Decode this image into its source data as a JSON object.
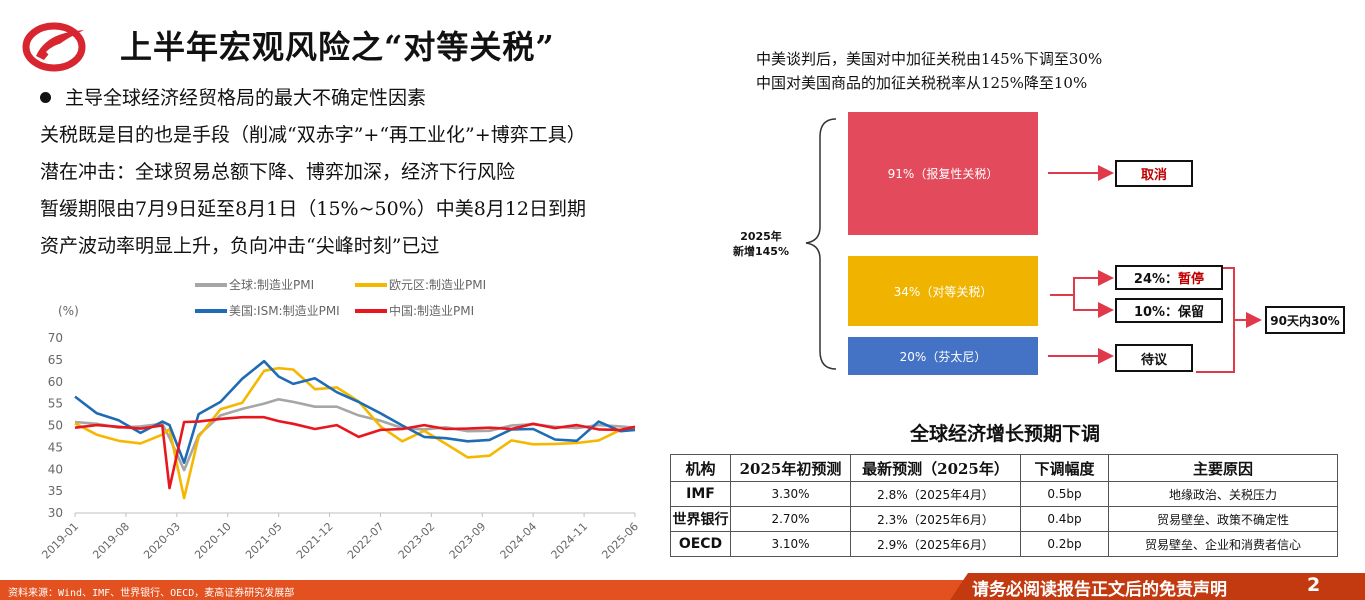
{
  "title": "上半年宏观风险之“对等关税”",
  "bullet_heading": "主导全球经济经贸格局的最大不确定性因素",
  "lines": [
    "关税既是目的也是手段（削减“双赤字”+“再工业化”+博弈工具）",
    "潜在冲击：全球贸易总额下降、博弈加深，经济下行风险",
    "暂缓期限由7月9日延至8月1日（15%~50%）中美8月12日到期",
    "资产波动率明显上升，负向冲击“尖峰时刻”已过"
  ],
  "notes": [
    "中美谈判后，美国对中加征关税由145%下调至30%",
    "中国对美国商品的加征关税税率从125%降至10%"
  ],
  "tariff_diagram": {
    "brace_label_1": "2025年",
    "brace_label_2": "新增145%",
    "segments": [
      {
        "label": "91%（报复性关税）",
        "color": "#e34a5b"
      },
      {
        "label": "34%（对等关税）",
        "color": "#f0b400"
      },
      {
        "label": "20%（芬太尼）",
        "color": "#4472c4"
      }
    ],
    "outcomes": {
      "cancel": "取消",
      "pause_pct": "24%：",
      "pause_word": "暂停",
      "keep": "10%：保留",
      "pending": "待议",
      "ninety_days": "90天内30%"
    },
    "arrow_color": "#e03a4a"
  },
  "chart_data": {
    "type": "line",
    "ylabel": "(%)",
    "ylim": [
      30,
      70
    ],
    "yticks": [
      30,
      35,
      40,
      45,
      50,
      55,
      60,
      65,
      70
    ],
    "xticks": [
      "2019-01",
      "2019-08",
      "2020-03",
      "2020-10",
      "2021-05",
      "2021-12",
      "2022-07",
      "2023-02",
      "2023-09",
      "2024-04",
      "2024-11",
      "2025-06"
    ],
    "x": [
      "2019-01",
      "2019-04",
      "2019-07",
      "2019-10",
      "2020-01",
      "2020-02",
      "2020-04",
      "2020-06",
      "2020-09",
      "2020-12",
      "2021-03",
      "2021-05",
      "2021-07",
      "2021-10",
      "2022-01",
      "2022-04",
      "2022-07",
      "2022-10",
      "2023-01",
      "2023-04",
      "2023-07",
      "2023-10",
      "2024-01",
      "2024-04",
      "2024-07",
      "2024-10",
      "2025-01",
      "2025-04",
      "2025-06"
    ],
    "series": [
      {
        "name": "全球:制造业PMI",
        "color": "#a6a6a6",
        "values": [
          50.8,
          50.4,
          49.5,
          49.8,
          50.4,
          47.2,
          39.8,
          47.8,
          52.3,
          53.8,
          55.0,
          56.0,
          55.4,
          54.3,
          54.3,
          52.3,
          51.1,
          49.4,
          49.1,
          49.6,
          48.7,
          48.8,
          50.0,
          50.3,
          49.7,
          49.4,
          50.1,
          49.8,
          49.5
        ]
      },
      {
        "name": "欧元区:制造业PMI",
        "color": "#f5b800",
        "values": [
          50.5,
          47.9,
          46.5,
          45.9,
          47.9,
          49.2,
          33.4,
          47.4,
          53.7,
          55.2,
          62.5,
          63.1,
          62.8,
          58.3,
          58.7,
          55.5,
          49.8,
          46.4,
          48.8,
          45.8,
          42.7,
          43.1,
          46.6,
          45.7,
          45.8,
          46.0,
          46.6,
          49.0,
          49.5
        ]
      },
      {
        "name": "美国:ISM:制造业PMI",
        "color": "#1f6bb5",
        "values": [
          56.6,
          52.8,
          51.2,
          48.3,
          50.9,
          50.1,
          41.5,
          52.6,
          55.4,
          60.7,
          64.7,
          61.2,
          59.5,
          60.8,
          57.6,
          55.4,
          52.8,
          50.0,
          47.4,
          47.1,
          46.4,
          46.7,
          49.1,
          49.2,
          46.8,
          46.5,
          50.9,
          48.7,
          49.0
        ]
      },
      {
        "name": "中国:制造业PMI",
        "color": "#e8161d",
        "values": [
          49.5,
          50.1,
          49.7,
          49.3,
          50.0,
          35.7,
          50.8,
          50.9,
          51.5,
          51.9,
          51.9,
          51.0,
          50.4,
          49.2,
          50.1,
          47.4,
          49.0,
          49.2,
          50.1,
          49.2,
          49.3,
          49.5,
          49.2,
          50.4,
          49.4,
          50.1,
          49.1,
          49.0,
          49.7
        ]
      }
    ]
  },
  "table": {
    "title": "全球经济增长预期下调",
    "headers": [
      "机构",
      "2025年初预测",
      "最新预测（2025年）",
      "下调幅度",
      "主要原因"
    ],
    "rows": [
      [
        "IMF",
        "3.30%",
        "2.8%（2025年4月）",
        "0.5bp",
        "地缘政治、关税压力"
      ],
      [
        "世界银行",
        "2.70%",
        "2.3%（2025年6月）",
        "0.4bp",
        "贸易壁垒、政策不确定性"
      ],
      [
        "OECD",
        "3.10%",
        "2.9%（2025年6月）",
        "0.2bp",
        "贸易壁垒、企业和消费者信心"
      ]
    ]
  },
  "footer": {
    "source": "资料来源：Wind、IMF、世界银行、OECD，麦高证券研究发展部",
    "disclaimer": "请务必阅读报告正文后的免责声明",
    "page": "2"
  },
  "colors": {
    "accent": "#e2511f",
    "accent_dark": "#c33a11",
    "logo_red": "#d7262f"
  }
}
